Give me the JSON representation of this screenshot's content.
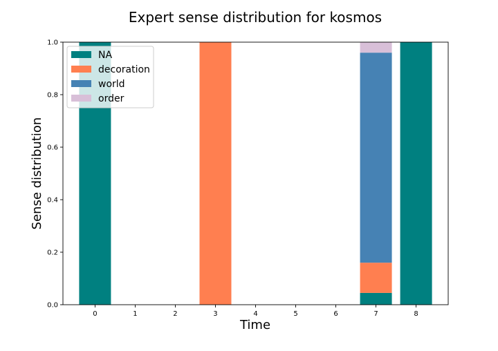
{
  "chart_data": {
    "type": "bar",
    "stacked": true,
    "title": "Expert sense distribution for kosmos",
    "xlabel": "Time",
    "ylabel": "Sense distribution",
    "ylim": [
      0,
      1.0
    ],
    "xlim": [
      -0.8,
      8.8
    ],
    "x_ticks": [
      "0",
      "1",
      "2",
      "3",
      "4",
      "5",
      "6",
      "7",
      "8"
    ],
    "y_ticks": [
      "0.0",
      "0.2",
      "0.4",
      "0.6",
      "0.8",
      "1.0"
    ],
    "grid": false,
    "legend_position": "top-left",
    "categories": [
      0,
      1,
      2,
      3,
      4,
      5,
      6,
      7,
      8
    ],
    "series": [
      {
        "name": "NA",
        "color": "#008080",
        "values": [
          1.0,
          0,
          0,
          0,
          0,
          0,
          0,
          0.045,
          1.0
        ]
      },
      {
        "name": "decoration",
        "color": "#FF7F50",
        "values": [
          0,
          0,
          0,
          1.0,
          0,
          0,
          0,
          0.115,
          0
        ]
      },
      {
        "name": "world",
        "color": "#4682B4",
        "values": [
          0,
          0,
          0,
          0,
          0,
          0,
          0,
          0.8,
          0
        ]
      },
      {
        "name": "order",
        "color": "#D8BFD8",
        "values": [
          0,
          0,
          0,
          0,
          0,
          0,
          0,
          0.04,
          0
        ]
      }
    ]
  }
}
